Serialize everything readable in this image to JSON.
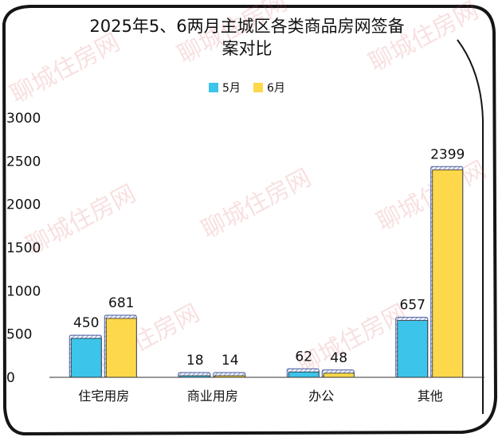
{
  "chart_data": {
    "type": "bar",
    "title": "2025年5、6两月主城区各类商品房网签备案对比",
    "title_lines": [
      "2025年5、6两月主城区各类商品房网签备",
      "案对比"
    ],
    "categories": [
      "住宅用房",
      "商业用房",
      "办公",
      "其他"
    ],
    "series": [
      {
        "name": "5月",
        "values": [
          450,
          18,
          62,
          657
        ],
        "color": "#3cc4ea"
      },
      {
        "name": "6月",
        "values": [
          681,
          14,
          48,
          2399
        ],
        "color": "#fdd84a"
      }
    ],
    "yticks": [
      "0",
      "500",
      "1000",
      "1500",
      "2000",
      "2500",
      "3000"
    ],
    "ylim": [
      0,
      3000
    ],
    "legend_position": "top",
    "grid": false,
    "watermark": "聊城住房网"
  }
}
